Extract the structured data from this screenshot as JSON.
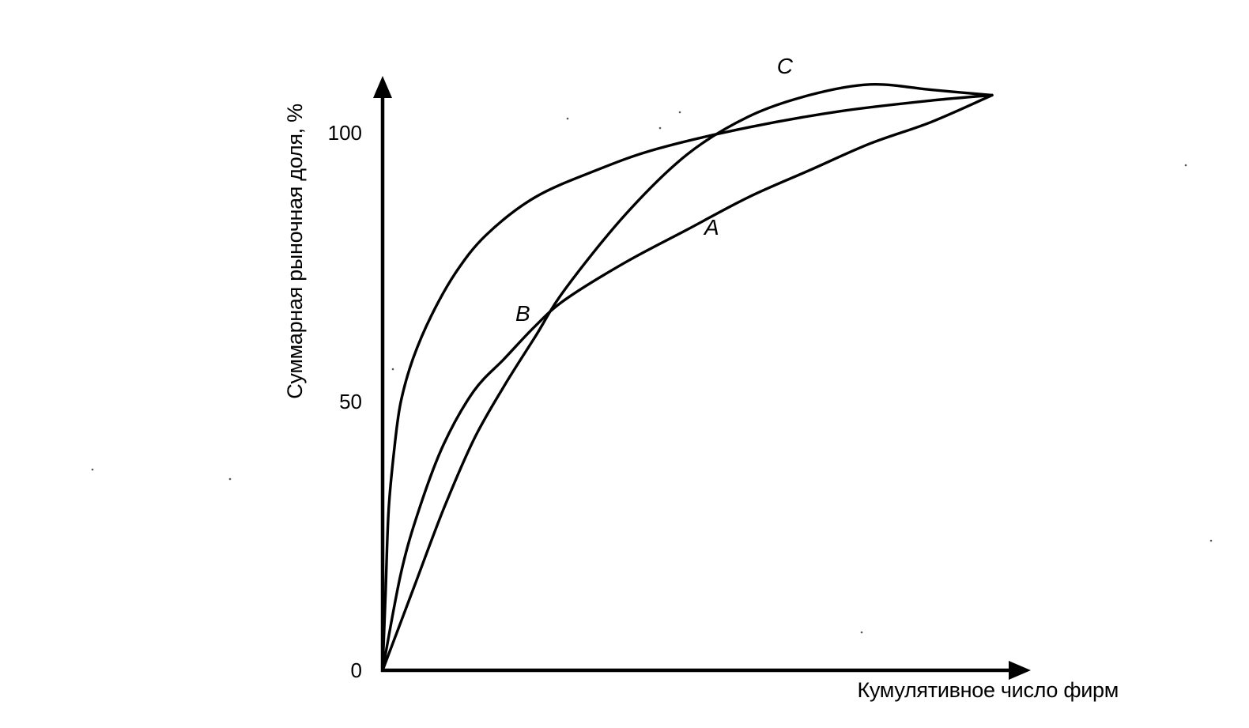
{
  "chart_data": {
    "type": "line",
    "title": "",
    "xlabel": "Кумулятивное число фирм",
    "ylabel": "Суммарная рыночная доля, %",
    "x_ticks": [],
    "y_ticks": [
      {
        "value": 0,
        "label": "0"
      },
      {
        "value": 50,
        "label": "50"
      },
      {
        "value": 100,
        "label": "100"
      }
    ],
    "xlim": [
      0,
      100
    ],
    "ylim": [
      0,
      110
    ],
    "grid": false,
    "legend": "none",
    "series": [
      {
        "name": "A",
        "label_value": [
          54,
          81
        ],
        "points": [
          [
            0,
            0
          ],
          [
            3,
            18
          ],
          [
            6,
            30
          ],
          [
            10,
            42
          ],
          [
            15,
            52
          ],
          [
            20,
            58
          ],
          [
            25,
            64
          ],
          [
            30,
            69
          ],
          [
            40,
            76
          ],
          [
            50,
            82
          ],
          [
            60,
            88
          ],
          [
            70,
            93
          ],
          [
            80,
            98
          ],
          [
            90,
            102
          ],
          [
            100,
            107
          ]
        ]
      },
      {
        "name": "B",
        "label_value": [
          23,
          65
        ],
        "points": [
          [
            0,
            0
          ],
          [
            5,
            15
          ],
          [
            10,
            30
          ],
          [
            15,
            43
          ],
          [
            20,
            53
          ],
          [
            25,
            62
          ],
          [
            30,
            71
          ],
          [
            40,
            85
          ],
          [
            50,
            96
          ],
          [
            60,
            103
          ],
          [
            70,
            107
          ],
          [
            80,
            109
          ],
          [
            90,
            108
          ],
          [
            100,
            107
          ]
        ]
      },
      {
        "name": "C",
        "label_value": [
          66,
          111
        ],
        "points": [
          [
            0,
            0
          ],
          [
            0.5,
            15
          ],
          [
            1,
            30
          ],
          [
            2,
            42
          ],
          [
            3,
            50
          ],
          [
            5,
            58
          ],
          [
            8,
            66
          ],
          [
            12,
            74
          ],
          [
            17,
            81
          ],
          [
            25,
            88
          ],
          [
            35,
            93
          ],
          [
            45,
            97
          ],
          [
            60,
            101
          ],
          [
            75,
            104
          ],
          [
            90,
            106
          ],
          [
            100,
            107
          ]
        ]
      }
    ]
  }
}
